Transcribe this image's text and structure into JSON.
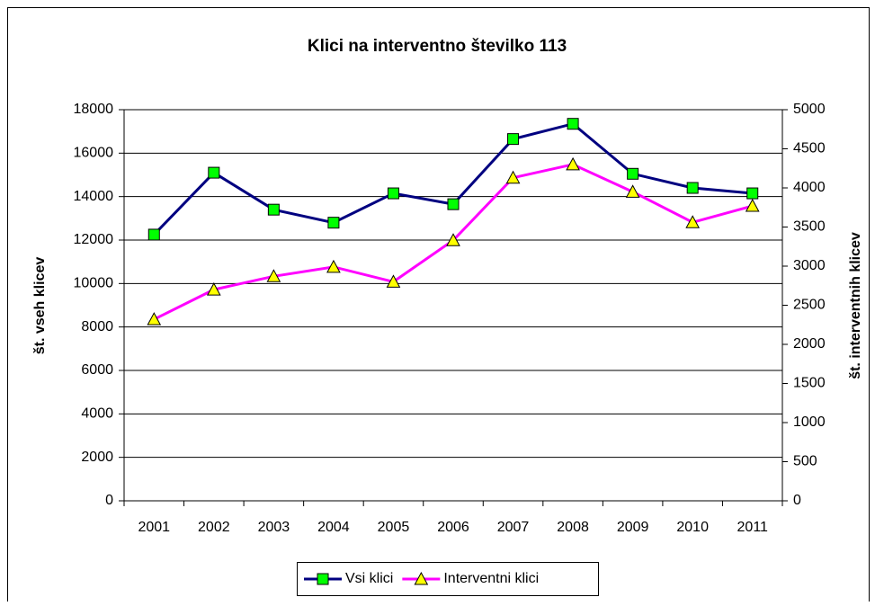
{
  "chart_data": {
    "type": "line",
    "title": "Klici na interventno številko 113",
    "y_label": "št. vseh klicev",
    "y2_label": "št. interventnih klicev",
    "categories": [
      "2001",
      "2002",
      "2003",
      "2004",
      "2005",
      "2006",
      "2007",
      "2008",
      "2009",
      "2010",
      "2011"
    ],
    "series": [
      {
        "name": "Vsi klici",
        "color": "#000080",
        "marker_color": "#00ff00",
        "marker": "square",
        "values": [
          12250,
          15100,
          13400,
          12800,
          14150,
          13650,
          16650,
          17350,
          15050,
          14400,
          14150
        ]
      },
      {
        "name": "Interventni klici",
        "color": "#ff00ff",
        "marker_color": "#ffff00",
        "marker": "triangle",
        "axis": "y2",
        "values": [
          2320,
          2700,
          2870,
          2990,
          2800,
          3330,
          4130,
          4300,
          3950,
          3560,
          3770
        ]
      }
    ],
    "ylim": [
      0,
      18000
    ],
    "yticks": [
      0,
      2000,
      4000,
      6000,
      8000,
      10000,
      12000,
      14000,
      16000,
      18000
    ],
    "y2lim": [
      0,
      5000
    ],
    "y2ticks": [
      0,
      500,
      1000,
      1500,
      2000,
      2500,
      3000,
      3500,
      4000,
      4500,
      5000
    ],
    "grid": true,
    "legend": "bottom"
  }
}
